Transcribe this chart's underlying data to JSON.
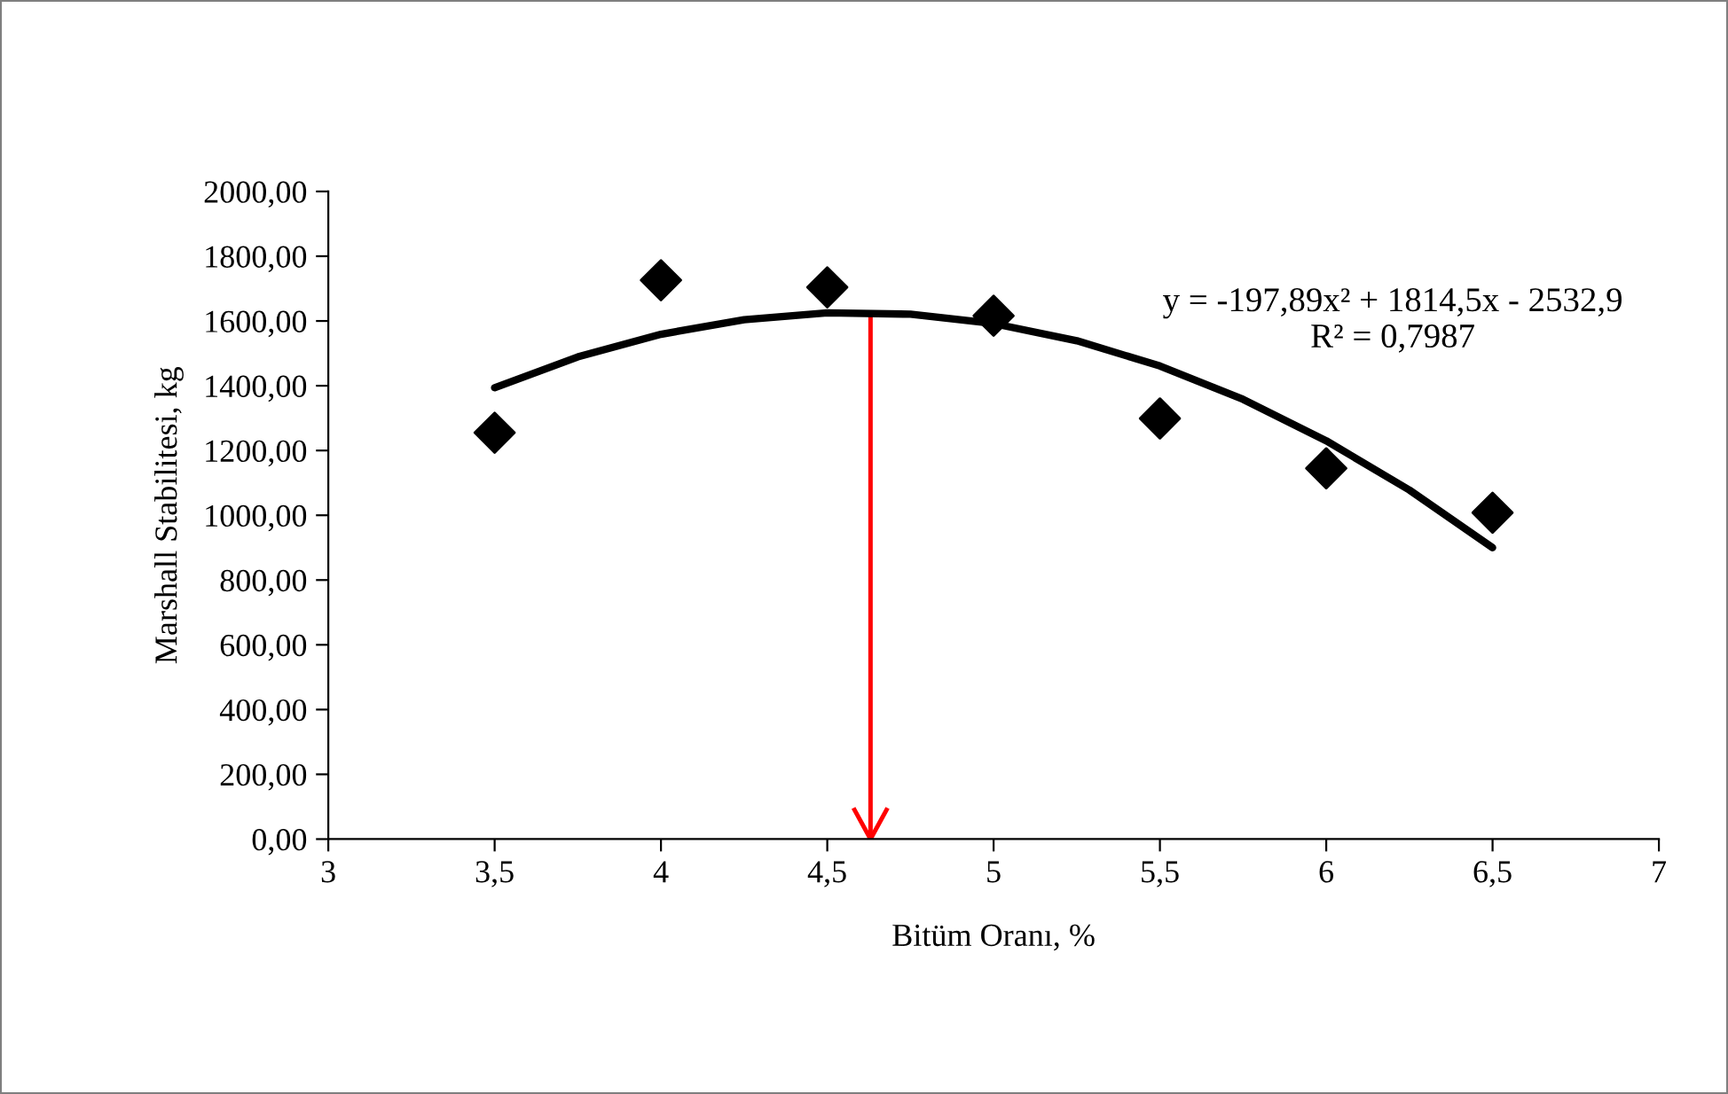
{
  "chart_data": {
    "type": "scatter",
    "xlabel": "Bitüm Oranı, %",
    "ylabel": "Marshall Stabilitesi, kg",
    "xlim": [
      3,
      7
    ],
    "xticks": [
      3,
      {
        "value": 3.5,
        "label": "3,5"
      },
      4,
      {
        "value": 4.5,
        "label": "4,5"
      },
      5,
      {
        "value": 5.5,
        "label": "5,5"
      },
      6,
      {
        "value": 6.5,
        "label": "6,5"
      },
      7
    ],
    "ylim": [
      0,
      2000
    ],
    "yticks": [
      {
        "value": 0,
        "label": "0,00"
      },
      {
        "value": 200,
        "label": "200,00"
      },
      {
        "value": 400,
        "label": "400,00"
      },
      {
        "value": 600,
        "label": "600,00"
      },
      {
        "value": 800,
        "label": "800,00"
      },
      {
        "value": 1000,
        "label": "1000,00"
      },
      {
        "value": 1200,
        "label": "1200,00"
      },
      {
        "value": 1400,
        "label": "1400,00"
      },
      {
        "value": 1600,
        "label": "1600,00"
      },
      {
        "value": 1800,
        "label": "1800,00"
      },
      {
        "value": 2000,
        "label": "2000,00"
      }
    ],
    "series": [
      {
        "color": "#000000",
        "marker": "diamond",
        "x": [
          3.5,
          4,
          4.5,
          5,
          5.5,
          6,
          6.5
        ],
        "values": [
          1255,
          1726,
          1704,
          1616,
          1299,
          1145,
          1008
        ]
      },
      {
        "type": "line",
        "color": "#000000",
        "marker": "none",
        "line_style": "solid",
        "x": [
          3.5,
          3.75,
          4,
          4.25,
          4.5,
          4.75,
          5,
          5.25,
          5.5,
          5.75,
          6,
          6.25,
          6.5
        ],
        "values": [
          1394,
          1489,
          1559,
          1604,
          1625,
          1621,
          1592,
          1539,
          1461,
          1358,
          1230,
          1078,
          900
        ]
      }
    ],
    "ref_lines": [
      {
        "axis": "x",
        "value": 4.63,
        "color": "#ff0000"
      }
    ],
    "annotations": [
      "y = -197,89x² + 1814,5x - 2532,9\nR² = 0,7987"
    ],
    "grid": false,
    "legend": false
  }
}
